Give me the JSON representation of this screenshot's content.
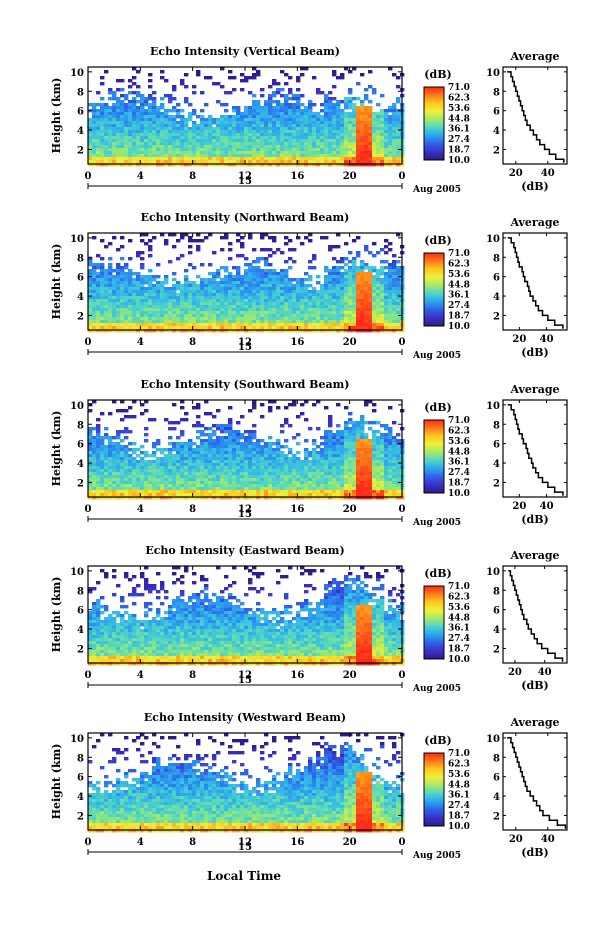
{
  "figure": {
    "xaxis_title": "Local Time",
    "colorbar": {
      "unit_label": "(dB)",
      "tick_labels": [
        "71.0",
        "62.3",
        "53.6",
        "44.8",
        "36.1",
        "27.4",
        "18.7",
        "10.0"
      ],
      "colors": [
        "#ff2a1a",
        "#ff7a1a",
        "#ffc81e",
        "#f0ef3a",
        "#a6e86a",
        "#4fd4c8",
        "#2aa4f0",
        "#3060e8",
        "#3a2fc8",
        "#2a1d8a"
      ]
    }
  },
  "chart_data": [
    {
      "type": "heatmap",
      "title": "Echo Intensity (Vertical Beam)",
      "ylabel": "Height (km)",
      "x_ticks": [
        "0",
        "4",
        "8",
        "12",
        "16",
        "20",
        "0"
      ],
      "date_ticks": [
        "15"
      ],
      "date_label": "Aug 2005",
      "xlim": [
        0,
        24
      ],
      "ylim": [
        0.5,
        10.5
      ],
      "y_ticks": [
        "2",
        "4",
        "6",
        "8",
        "10"
      ],
      "colorbar_range_db": [
        10.0,
        71.0
      ],
      "profile": {
        "title": "Average",
        "xlabel": "(dB)",
        "x_ticks": [
          "20",
          "40"
        ],
        "xlim": [
          12,
          52
        ],
        "height_km": [
          0.7,
          1.0,
          1.5,
          2.0,
          2.5,
          3.0,
          3.5,
          4.0,
          4.5,
          5.0,
          5.5,
          6.0,
          6.5,
          7.0,
          7.5,
          8.0,
          8.5,
          9.0,
          9.5,
          10.0
        ],
        "db": [
          50,
          45,
          41,
          38,
          35,
          33,
          31,
          29,
          27,
          26,
          25,
          24,
          23,
          22,
          21,
          20,
          19,
          18,
          17,
          15
        ]
      }
    },
    {
      "type": "heatmap",
      "title": "Echo Intensity (Northward Beam)",
      "ylabel": "Height (km)",
      "x_ticks": [
        "0",
        "4",
        "8",
        "12",
        "16",
        "20",
        "0"
      ],
      "date_ticks": [
        "15"
      ],
      "date_label": "Aug 2005",
      "xlim": [
        0,
        24
      ],
      "ylim": [
        0.5,
        10.5
      ],
      "y_ticks": [
        "2",
        "4",
        "6",
        "8",
        "10"
      ],
      "colorbar_range_db": [
        10.0,
        71.0
      ],
      "profile": {
        "title": "Average",
        "xlabel": "(dB)",
        "x_ticks": [
          "20",
          "40"
        ],
        "xlim": [
          8,
          55
        ],
        "height_km": [
          0.7,
          1.0,
          1.5,
          2.0,
          2.5,
          3.0,
          3.5,
          4.0,
          4.5,
          5.0,
          5.5,
          6.0,
          6.5,
          7.0,
          7.5,
          8.0,
          8.5,
          9.0,
          9.5,
          10.0
        ],
        "db": [
          52,
          46,
          41,
          37,
          34,
          32,
          30,
          28,
          27,
          26,
          24,
          23,
          22,
          20,
          19,
          18,
          17,
          16,
          14,
          12
        ]
      }
    },
    {
      "type": "heatmap",
      "title": "Echo Intensity (Southward Beam)",
      "ylabel": "Height (km)",
      "x_ticks": [
        "0",
        "4",
        "8",
        "12",
        "16",
        "20",
        "0"
      ],
      "date_ticks": [
        "15"
      ],
      "date_label": "Aug 2005",
      "xlim": [
        0,
        24
      ],
      "ylim": [
        0.5,
        10.5
      ],
      "y_ticks": [
        "2",
        "4",
        "6",
        "8",
        "10"
      ],
      "colorbar_range_db": [
        10.0,
        71.0
      ],
      "profile": {
        "title": "Average",
        "xlabel": "(dB)",
        "x_ticks": [
          "20",
          "40"
        ],
        "xlim": [
          8,
          55
        ],
        "height_km": [
          0.7,
          1.0,
          1.5,
          2.0,
          2.5,
          3.0,
          3.5,
          4.0,
          4.5,
          5.0,
          5.5,
          6.0,
          6.5,
          7.0,
          7.5,
          8.0,
          8.5,
          9.0,
          9.5,
          10.0
        ],
        "db": [
          52,
          46,
          41,
          37,
          34,
          32,
          30,
          29,
          27,
          26,
          25,
          23,
          22,
          20,
          19,
          18,
          17,
          16,
          14,
          12
        ]
      }
    },
    {
      "type": "heatmap",
      "title": "Echo Intensity (Eastward Beam)",
      "ylabel": "Height (km)",
      "x_ticks": [
        "0",
        "4",
        "8",
        "12",
        "16",
        "20",
        "0"
      ],
      "date_ticks": [
        "15"
      ],
      "date_label": "Aug 2005",
      "xlim": [
        0,
        24
      ],
      "ylim": [
        0.5,
        10.5
      ],
      "y_ticks": [
        "2",
        "4",
        "6",
        "8",
        "10"
      ],
      "colorbar_range_db": [
        10.0,
        71.0
      ],
      "profile": {
        "title": "Average",
        "xlabel": "(dB)",
        "x_ticks": [
          "20",
          "40"
        ],
        "xlim": [
          12,
          55
        ],
        "height_km": [
          0.7,
          1.0,
          1.5,
          2.0,
          2.5,
          3.0,
          3.5,
          4.0,
          4.5,
          5.0,
          5.5,
          6.0,
          6.5,
          7.0,
          7.5,
          8.0,
          8.5,
          9.0,
          9.5,
          10.0
        ],
        "db": [
          52,
          47,
          42,
          38,
          35,
          33,
          31,
          29,
          28,
          26,
          25,
          24,
          23,
          22,
          21,
          20,
          19,
          18,
          17,
          16
        ]
      }
    },
    {
      "type": "heatmap",
      "title": "Echo Intensity (Westward Beam)",
      "ylabel": "Height (km)",
      "x_ticks": [
        "0",
        "4",
        "8",
        "12",
        "16",
        "20",
        "0"
      ],
      "date_ticks": [
        "15"
      ],
      "date_label": "Aug 2005",
      "xlim": [
        0,
        24
      ],
      "ylim": [
        0.5,
        10.5
      ],
      "y_ticks": [
        "2",
        "4",
        "6",
        "8",
        "10"
      ],
      "colorbar_range_db": [
        10.0,
        71.0
      ],
      "profile": {
        "title": "Average",
        "xlabel": "(dB)",
        "x_ticks": [
          "20",
          "40"
        ],
        "xlim": [
          12,
          52
        ],
        "height_km": [
          0.7,
          1.0,
          1.5,
          2.0,
          2.5,
          3.0,
          3.5,
          4.0,
          4.5,
          5.0,
          5.5,
          6.0,
          6.5,
          7.0,
          7.5,
          8.0,
          8.5,
          9.0,
          9.5,
          10.0
        ],
        "db": [
          51,
          46,
          41,
          37,
          35,
          33,
          31,
          29,
          27,
          26,
          25,
          24,
          23,
          22,
          21,
          20,
          19,
          18,
          17,
          15
        ]
      }
    }
  ]
}
